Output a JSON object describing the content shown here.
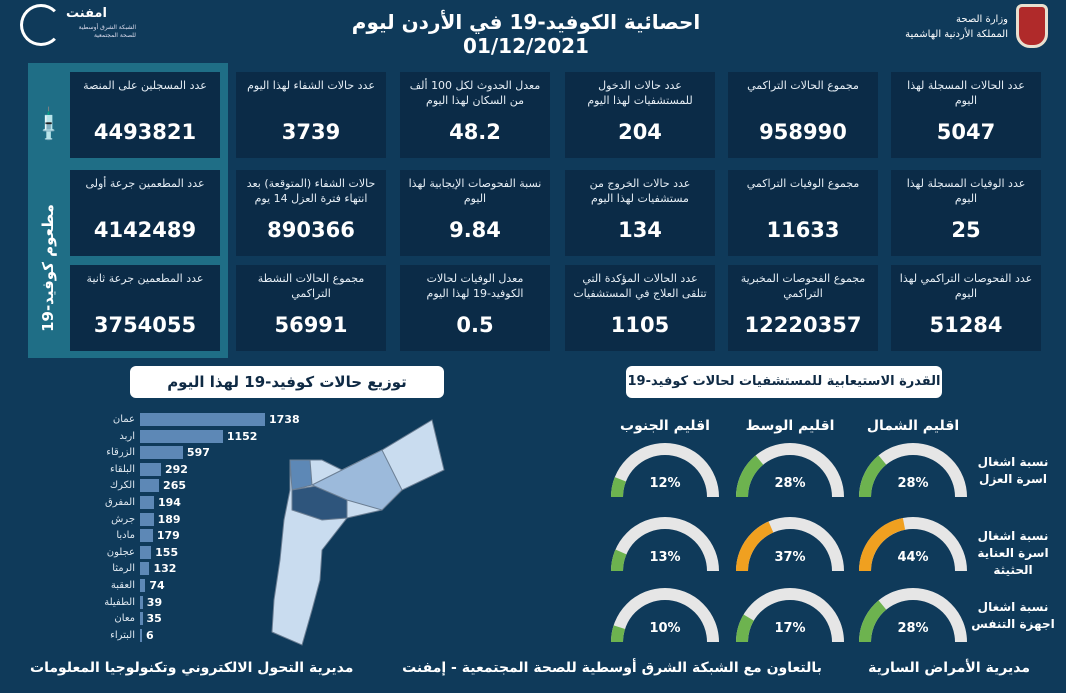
{
  "header": {
    "title": "احصائية الكوفيد-19 في الأردن ليوم",
    "date": "01/12/2021",
    "ministry_line1": "وزارة الصحة",
    "ministry_line2": "المملكة الأردنية الهاشمية",
    "partner_name": "امفنت",
    "partner_sub": "الشبكة الشرق أوسطية للصحة المجتمعية"
  },
  "cards": [
    {
      "label": "عدد الحالات المسجلة لهذا اليوم",
      "value": "5047"
    },
    {
      "label": "مجموع الحالات التراكمي",
      "value": "958990"
    },
    {
      "label": "عدد حالات الدخول للمستشفيات لهذا اليوم",
      "value": "204"
    },
    {
      "label": "معدل الحدوث لكل 100 ألف من السكان لهذا اليوم",
      "value": "48.2"
    },
    {
      "label": "عدد حالات الشفاء لهذا اليوم",
      "value": "3739"
    },
    {
      "label": "عدد الوفيات المسجلة لهذا اليوم",
      "value": "25"
    },
    {
      "label": "مجموع الوفيات التراكمي",
      "value": "11633"
    },
    {
      "label": "عدد حالات الخروج من مستشفيات لهذا اليوم",
      "value": "134"
    },
    {
      "label": "نسبة الفحوصات الإيجابية لهذا اليوم",
      "value": "9.84"
    },
    {
      "label": "حالات الشفاء (المتوقعة) بعد انتهاء فترة العزل 14 يوم",
      "value": "890366"
    },
    {
      "label": "عدد الفحوصات التراكمي لهذا اليوم",
      "value": "51284"
    },
    {
      "label": "مجموع الفحوصات المخبرية التراكمي",
      "value": "12220357"
    },
    {
      "label": "عدد الحالات المؤكدة التي تتلقى العلاج في المستشفيات",
      "value": "1105"
    },
    {
      "label": "معدل الوفيات لحالات الكوفيد-19 لهذا اليوم",
      "value": "0.5"
    },
    {
      "label": "مجموع الحالات النشطة التراكمي",
      "value": "56991"
    }
  ],
  "vaccine": {
    "title": "مطعوم كوفيد-19",
    "icon": "syringe-icon",
    "cards": [
      {
        "label": "عدد المسجلين على المنصة",
        "value": "4493821"
      },
      {
        "label": "عدد المطعمين جرعة أولى",
        "value": "4142489"
      },
      {
        "label": "عدد المطعمين جرعة ثانية",
        "value": "3754055"
      }
    ]
  },
  "distribution": {
    "title": "توزيع حالات كوفيد-19 لهذا اليوم",
    "chart_data": {
      "type": "bar",
      "orientation": "horizontal",
      "categories": [
        "عمان",
        "اربد",
        "الزرقاء",
        "البلقاء",
        "الكرك",
        "المفرق",
        "جرش",
        "مادبا",
        "عجلون",
        "الرمثا",
        "العقبة",
        "الطفيلة",
        "معان",
        "البتراء"
      ],
      "values": [
        1738,
        1152,
        597,
        292,
        265,
        194,
        189,
        179,
        155,
        132,
        74,
        39,
        35,
        6
      ],
      "color": "#5d88b6"
    }
  },
  "capacity": {
    "title": "القدرة الاستيعابية للمستشفيات لحالات كوفيد-19",
    "regions": [
      "اقليم الشمال",
      "اقليم الوسط",
      "اقليم الجنوب"
    ],
    "rows": [
      {
        "label": "نسبة اشغال اسرة العزل",
        "values": [
          28,
          28,
          12
        ]
      },
      {
        "label": "نسبة اشغال اسرة العناية الحثيثة",
        "values": [
          44,
          37,
          13
        ]
      },
      {
        "label": "نسبة اشغال اجهزة التنفس",
        "values": [
          28,
          17,
          10
        ]
      }
    ],
    "colors": {
      "normal": "#6db34f",
      "high": "#f0a020",
      "track": "#e6e6e6"
    }
  },
  "footer": {
    "right": "مديرية الأمراض السارية",
    "center": "بالتعاون مع الشبكة الشرق أوسطية للصحة المجتمعية - إمفنت",
    "left": "مديرية التحول الالكتروني وتكنولوجيا المعلومات"
  }
}
